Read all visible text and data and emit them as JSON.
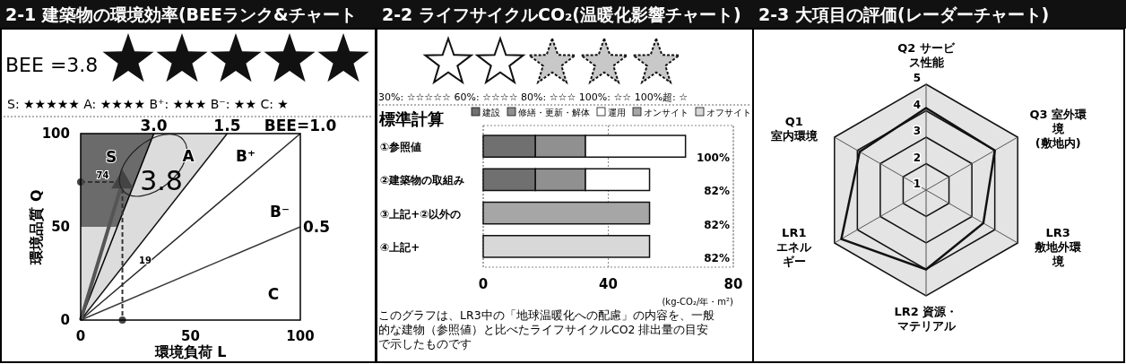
{
  "chart_data": [
    {
      "type": "scatter",
      "title": "2-1 建築物の環境効率(BEEランク&チャート",
      "subtitle": "BEE =3.8",
      "xlabel": "環境負荷 L",
      "ylabel": "環境品質 Q",
      "xlim": [
        0,
        100
      ],
      "ylim": [
        0,
        100
      ],
      "xticks": [
        0,
        50,
        100
      ],
      "yticks": [
        0,
        50,
        100
      ],
      "series": [
        {
          "type": "line",
          "color": "#000000",
          "x": [
            0,
            33.3
          ],
          "values": [
            0,
            100
          ]
        },
        {
          "type": "line",
          "color": "#141414",
          "x": [
            0,
            66.7
          ],
          "values": [
            0,
            100
          ]
        },
        {
          "type": "line",
          "color": "#262626",
          "x": [
            0,
            100
          ],
          "values": [
            0,
            100
          ]
        },
        {
          "type": "line",
          "color": "#383838",
          "x": [
            0,
            100
          ],
          "values": [
            0,
            50
          ]
        },
        {
          "type": "scatter",
          "color": "#444444",
          "marker": "triangle",
          "x": [
            19
          ],
          "values": [
            74
          ]
        }
      ],
      "annotations": [
        "S: ★★★★★  A: ★★★★  B⁺: ★★★  B⁻: ★★  C: ★",
        "S",
        "A",
        "B⁺",
        "B⁻",
        "C",
        "3.8",
        {
          "text": "74",
          "x": 19,
          "y": 74
        },
        "19",
        {
          "text": "3.0",
          "x": 33.3,
          "y": 100
        },
        {
          "text": "1.5",
          "x": 66.7,
          "y": 100
        },
        {
          "text": "BEE=1.0",
          "x": 100,
          "y": 100
        },
        {
          "text": "0.5",
          "x": 100,
          "y": 50
        }
      ]
    },
    {
      "type": "bar",
      "orientation": "horizontal",
      "stacked": true,
      "title": "2-2 ライフサイクルCO₂(温暖化影響チャート)",
      "subtitle": "標準計算",
      "xlabel": "(kg-CO₂/年・m²)",
      "xlim": [
        0,
        80
      ],
      "xticks": [
        0,
        40,
        80
      ],
      "grid": "x",
      "legend": "top",
      "categories": [
        "①参照値",
        "②建築物の取組み",
        "③上記+②以外の",
        "④上記+"
      ],
      "series": [
        {
          "name": "建設",
          "color": "#707070",
          "values": [
            16.7,
            16.7,
            null,
            null
          ]
        },
        {
          "name": "修繕・更新・解体",
          "color": "#909090",
          "values": [
            16,
            16,
            null,
            null
          ]
        },
        {
          "name": "運用",
          "color": "#ffffff",
          "values": [
            32,
            20.5,
            null,
            null
          ]
        },
        {
          "name": "オンサイト",
          "color": "#a6a6a6",
          "values": [
            null,
            null,
            53.2,
            null
          ]
        },
        {
          "name": "オフサイト",
          "color": "#d8d8d8",
          "values": [
            null,
            null,
            null,
            53.2
          ]
        }
      ],
      "annotations": [
        "30%: ☆☆☆☆☆  60%: ☆☆☆☆  80%: ☆☆☆  100%: ☆☆  100%超: ☆",
        "100%",
        "82%",
        "82%",
        "82%",
        "このグラフは、LR3中の「地球温暖化への配慮」の内容を、一般",
        "的な建物（参照値）と比べたライフサイクルCO2 排出量の目安",
        "で示したものです"
      ]
    },
    {
      "type": "radar",
      "title": "2-3 大項目の評価(レーダーチャート)",
      "ylim": [
        1,
        5
      ],
      "yticks": [
        1,
        2,
        3,
        4,
        5
      ],
      "categories": [
        "Q2 サービス性能",
        "Q3 室外環境(敷地内)",
        "LR3敷地外環境",
        "LR2 資源・マテリアル",
        "LR1エネルギー",
        "Q1室内環境"
      ],
      "series": [
        {
          "color": "#111111",
          "values": [
            4.1,
            4.0,
            3.5,
            4.0,
            4.7,
            3.9
          ]
        }
      ]
    }
  ]
}
